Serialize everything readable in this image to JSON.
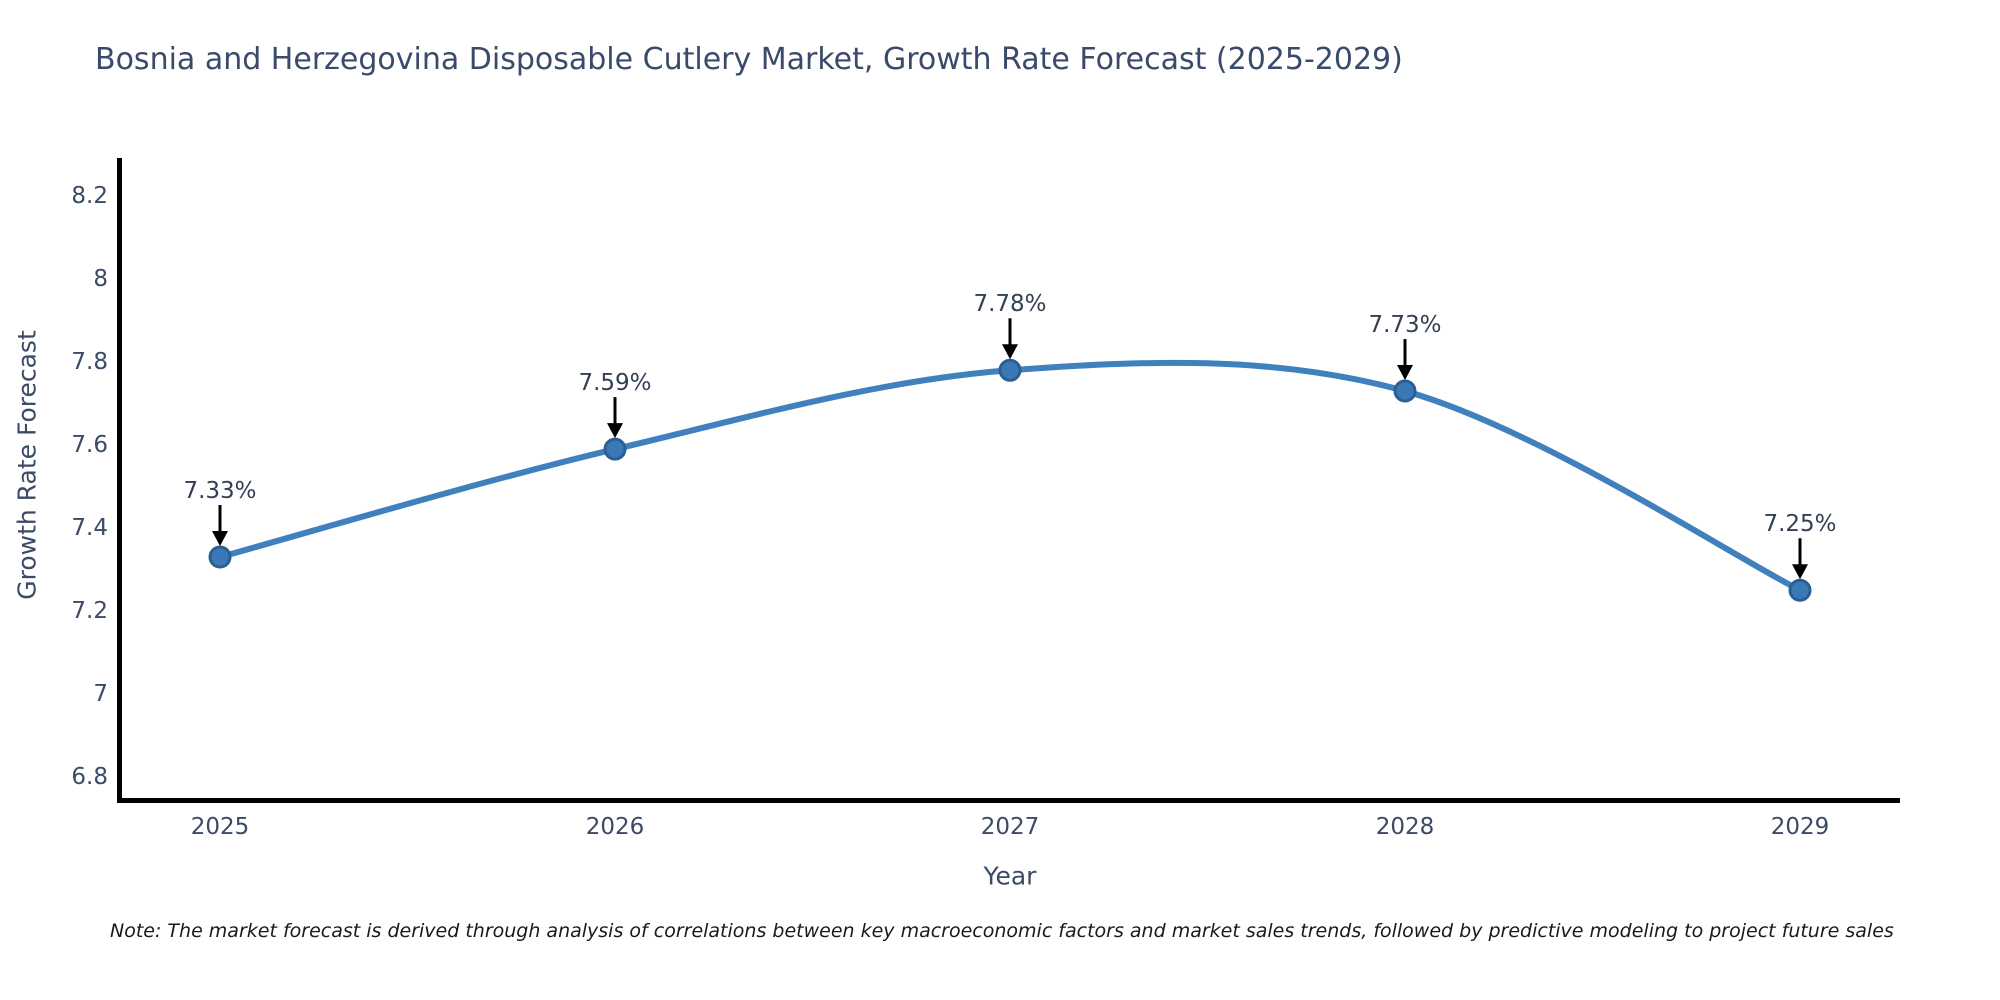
{
  "title": "Bosnia and Herzegovina Disposable Cutlery Market, Growth Rate Forecast (2025-2029)",
  "note": "Note: The market forecast is derived through analysis of correlations between key macroeconomic factors and market sales trends, followed by predictive modeling to project future sales",
  "chart_data": {
    "type": "line",
    "title": "Bosnia and Herzegovina Disposable Cutlery Market, Growth Rate Forecast (2025-2029)",
    "xlabel": "Year",
    "ylabel": "Growth Rate Forecast",
    "x": [
      2025,
      2026,
      2027,
      2028,
      2029
    ],
    "x_tick_labels": [
      "2025",
      "2026",
      "2027",
      "2028",
      "2029"
    ],
    "values": [
      7.33,
      7.59,
      7.78,
      7.73,
      7.25
    ],
    "point_labels": [
      "7.33%",
      "7.59%",
      "7.78%",
      "7.73%",
      "7.25%"
    ],
    "ylim": [
      6.8,
      8.2
    ],
    "ytick_step": 0.2,
    "ytick_labels": [
      "6.8",
      "7",
      "7.2",
      "7.4",
      "7.6",
      "7.8",
      "8",
      "8.2"
    ],
    "grid": false,
    "legend": false,
    "line_smoothing": true,
    "annotation_arrows": true
  },
  "colors": {
    "background": "#ffffff",
    "line": "#4080bd",
    "marker_fill": "#3a79b5",
    "marker_edge": "#2a5f94",
    "axis": "#000000",
    "tick_text": "#3b4a66",
    "annotation_text": "#333f55",
    "arrow": "#000000",
    "note_text": "#1a1a1a",
    "title_text": "#3a4a6b"
  }
}
